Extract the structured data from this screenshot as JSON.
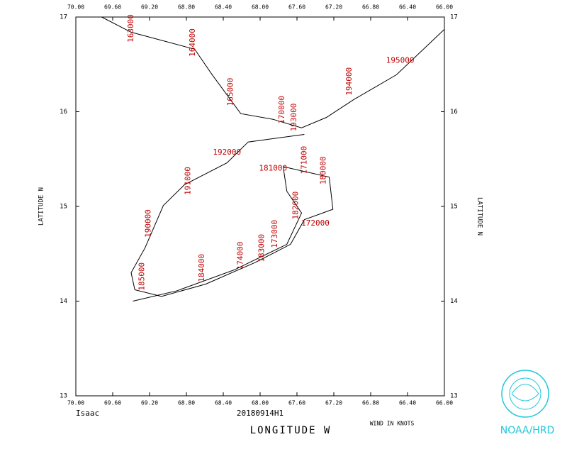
{
  "chart_data": {
    "type": "line",
    "title": "Isaac",
    "subtitle": "20180914H1",
    "x_label": "LONGITUDE  W",
    "y_label": "LATITUDE  N",
    "note": "WIND IN KNOTS",
    "credit": "NOAA/HRD",
    "x": [
      69.72,
      69.4,
      68.71,
      68.52,
      68.21,
      67.86,
      67.55,
      67.28,
      66.98,
      66.52,
      66.0,
      null,
      67.52,
      68.13,
      68.36,
      68.82,
      69.05,
      69.25,
      69.4,
      69.36,
      69.07,
      68.59,
      68.05,
      67.67,
      67.52,
      67.21,
      67.25,
      67.75,
      67.71,
      67.55,
      67.71,
      68.28,
      68.9,
      69.38
    ],
    "series": [
      {
        "name": "Isaac",
        "color": "#000000",
        "values": [
          17.0,
          16.84,
          16.66,
          16.39,
          15.98,
          15.92,
          15.83,
          15.94,
          16.13,
          16.39,
          16.87,
          null,
          15.76,
          15.68,
          15.46,
          15.23,
          15.01,
          14.56,
          14.3,
          14.12,
          14.05,
          14.18,
          14.41,
          14.6,
          14.86,
          14.97,
          15.31,
          15.42,
          15.16,
          14.93,
          14.6,
          14.33,
          14.11,
          14.0
        ]
      }
    ],
    "xlim": [
      70,
      66
    ],
    "ylim": [
      13,
      17
    ],
    "xticks": [
      {
        "value": 70,
        "label": "70.00"
      },
      {
        "value": 69.6,
        "label": "69.60"
      },
      {
        "value": 69.2,
        "label": "69.20"
      },
      {
        "value": 68.8,
        "label": "68.80"
      },
      {
        "value": 68.4,
        "label": "68.40"
      },
      {
        "value": 68,
        "label": "68.00"
      },
      {
        "value": 67.6,
        "label": "67.60"
      },
      {
        "value": 67.2,
        "label": "67.20"
      },
      {
        "value": 66.8,
        "label": "66.80"
      },
      {
        "value": 66.4,
        "label": "66.40"
      },
      {
        "value": 66,
        "label": "66.00"
      }
    ],
    "yticks": [
      13,
      14,
      15,
      16,
      17
    ],
    "annotations": [
      {
        "text": "163000",
        "x": 69.4,
        "y": 16.88,
        "rotated": true
      },
      {
        "text": "164000",
        "x": 68.73,
        "y": 16.73,
        "rotated": true
      },
      {
        "text": "165000",
        "x": 68.32,
        "y": 16.21,
        "rotated": true
      },
      {
        "text": "170000",
        "x": 67.76,
        "y": 16.02,
        "rotated": true
      },
      {
        "text": "193000",
        "x": 67.63,
        "y": 15.94,
        "rotated": true
      },
      {
        "text": "194000",
        "x": 67.03,
        "y": 16.32,
        "rotated": true
      },
      {
        "text": "195000",
        "x": 66.48,
        "y": 16.54,
        "rotated": false
      },
      {
        "text": "192000",
        "x": 68.36,
        "y": 15.57,
        "rotated": false
      },
      {
        "text": "191000",
        "x": 68.78,
        "y": 15.27,
        "rotated": true
      },
      {
        "text": "181000",
        "x": 67.86,
        "y": 15.4,
        "rotated": false
      },
      {
        "text": "171000",
        "x": 67.52,
        "y": 15.49,
        "rotated": true
      },
      {
        "text": "180000",
        "x": 67.31,
        "y": 15.38,
        "rotated": true
      },
      {
        "text": "182000",
        "x": 67.61,
        "y": 15.01,
        "rotated": true
      },
      {
        "text": "172000",
        "x": 67.4,
        "y": 14.82,
        "rotated": false
      },
      {
        "text": "173000",
        "x": 67.84,
        "y": 14.71,
        "rotated": true
      },
      {
        "text": "183000",
        "x": 67.98,
        "y": 14.56,
        "rotated": true
      },
      {
        "text": "174000",
        "x": 68.21,
        "y": 14.48,
        "rotated": true
      },
      {
        "text": "184000",
        "x": 68.63,
        "y": 14.35,
        "rotated": true
      },
      {
        "text": "185000",
        "x": 69.28,
        "y": 14.26,
        "rotated": true
      },
      {
        "text": "190000",
        "x": 69.21,
        "y": 14.82,
        "rotated": true
      }
    ]
  }
}
